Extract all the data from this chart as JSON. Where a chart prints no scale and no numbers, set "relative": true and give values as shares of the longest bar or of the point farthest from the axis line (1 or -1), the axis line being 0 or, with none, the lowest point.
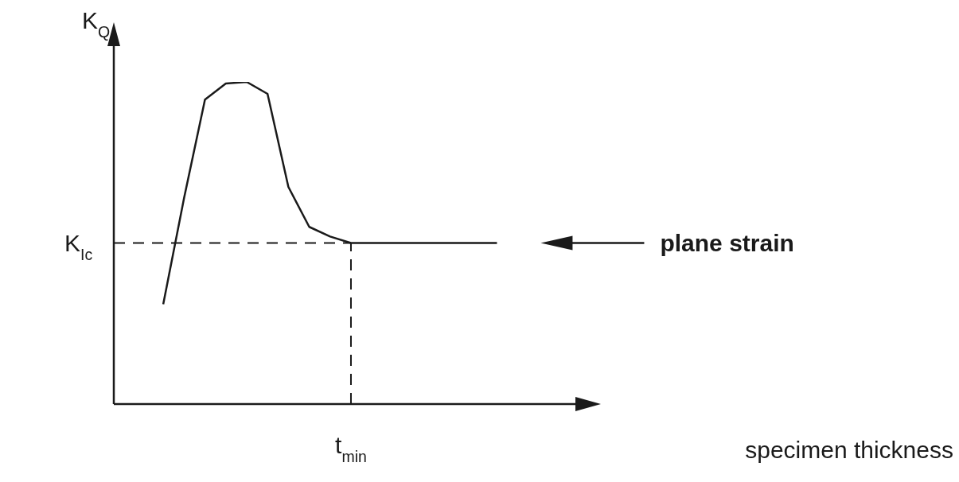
{
  "chart_data": {
    "type": "line",
    "relative": true,
    "ylabel": "K$_{Q}$",
    "marker": "none",
    "line_style": "solid",
    "categories": [
      null,
      null,
      null,
      null,
      null,
      null,
      null,
      null,
      null,
      null,
      null,
      null,
      null,
      null,
      null,
      null,
      null
    ],
    "series": [
      {
        "color": "#1a1a1a",
        "values": [
          0.31,
          0.64,
          0.945,
          0.995,
          1,
          0.963,
          0.674,
          0.55,
          0.52,
          0.5,
          0.5,
          0.5,
          0.5,
          0.5,
          0.5,
          0.5,
          0.5
        ]
      }
    ],
    "ref_lines": [
      {
        "axis": "y",
        "value": 0.5,
        "label": "K$_{Ic}$",
        "line_style": "dashed",
        "color": "#1a1a1a"
      },
      {
        "axis": "x",
        "label": "t$_{min}$",
        "line_style": "dashed",
        "color": "#1a1a1a"
      }
    ],
    "annotations": [
      "plane strain",
      "specimen thickness"
    ]
  }
}
